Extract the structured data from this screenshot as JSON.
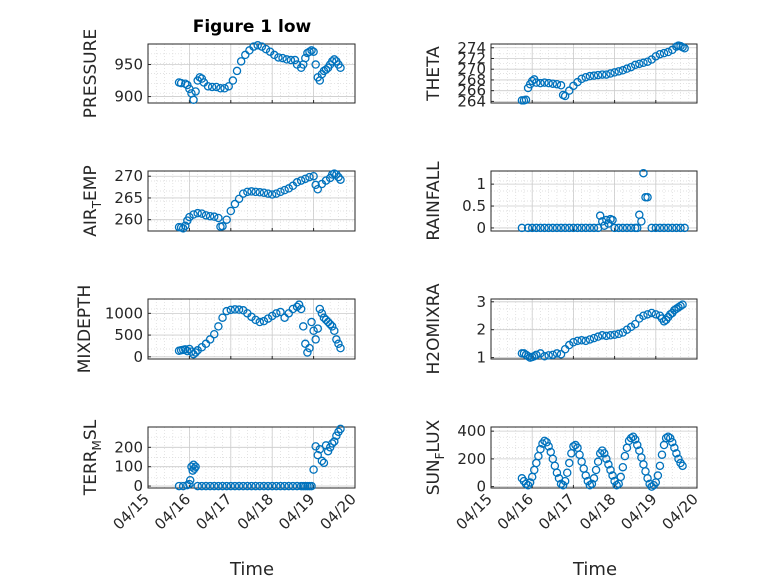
{
  "figure": {
    "title": "Figure 1 low",
    "xlabel": "Time",
    "marker_color": "#0072BD",
    "x_ticks": [
      "04/15",
      "04/16",
      "04/17",
      "04/18",
      "04/19",
      "04/20"
    ]
  },
  "chart_data": [
    {
      "type": "scatter",
      "title": "Figure 1 low",
      "ylabel": "PRESSURE",
      "ylabel_sub": "",
      "ylim": [
        890,
        982
      ],
      "yticks": [
        900,
        950
      ],
      "xlim": [
        0,
        5
      ],
      "grid": true,
      "x": [
        0.75,
        0.8,
        0.9,
        0.95,
        1.0,
        1.05,
        1.1,
        1.15,
        1.2,
        1.25,
        1.3,
        1.35,
        1.45,
        1.55,
        1.65,
        1.75,
        1.85,
        1.95,
        2.05,
        2.15,
        2.25,
        2.35,
        2.45,
        2.55,
        2.65,
        2.75,
        2.85,
        2.95,
        3.05,
        3.15,
        3.25,
        3.35,
        3.45,
        3.55,
        3.6,
        3.7,
        3.75,
        3.8,
        3.85,
        3.9,
        3.95,
        4.0,
        4.05,
        4.1,
        4.15,
        4.2,
        4.25,
        4.3,
        4.35,
        4.4,
        4.45,
        4.5,
        4.55,
        4.6,
        4.65
      ],
      "y": [
        922,
        921,
        920,
        918,
        912,
        905,
        895,
        908,
        925,
        930,
        928,
        922,
        916,
        915,
        915,
        913,
        913,
        916,
        925,
        940,
        955,
        965,
        972,
        978,
        980,
        978,
        974,
        970,
        965,
        961,
        960,
        958,
        957,
        957,
        950,
        945,
        950,
        960,
        968,
        970,
        972,
        970,
        950,
        930,
        925,
        935,
        940,
        942,
        945,
        950,
        955,
        958,
        955,
        950,
        945
      ]
    },
    {
      "type": "scatter",
      "ylabel": "THETA",
      "ylabel_sub": "",
      "ylim": [
        263.7,
        274.7
      ],
      "yticks": [
        264,
        266,
        268,
        270,
        272,
        274
      ],
      "xlim": [
        0,
        5
      ],
      "grid": true,
      "x": [
        0.75,
        0.8,
        0.85,
        0.9,
        0.95,
        1.0,
        1.05,
        1.1,
        1.2,
        1.3,
        1.4,
        1.5,
        1.6,
        1.7,
        1.75,
        1.8,
        1.9,
        2.0,
        2.1,
        2.2,
        2.3,
        2.4,
        2.5,
        2.6,
        2.7,
        2.8,
        2.9,
        3.0,
        3.1,
        3.2,
        3.3,
        3.4,
        3.5,
        3.6,
        3.7,
        3.8,
        3.9,
        4.0,
        4.1,
        4.2,
        4.3,
        4.4,
        4.5,
        4.55,
        4.6,
        4.65,
        4.7
      ],
      "y": [
        264.2,
        264.2,
        264.3,
        266.5,
        267.2,
        267.8,
        268.1,
        267.5,
        267.4,
        267.5,
        267.4,
        267.3,
        267.2,
        267.0,
        265.2,
        265.0,
        266.0,
        266.9,
        267.6,
        268.2,
        268.5,
        268.7,
        268.8,
        268.9,
        269.0,
        269.0,
        269.2,
        269.4,
        269.6,
        269.8,
        270.1,
        270.4,
        270.8,
        271.0,
        271.2,
        271.4,
        271.8,
        272.4,
        272.8,
        273.0,
        273.2,
        273.6,
        274.2,
        274.4,
        274.3,
        274.1,
        273.9
      ]
    },
    {
      "type": "scatter",
      "ylabel": "AIR",
      "ylabel_sub": "T",
      "ylabel_tail": "EMP",
      "ylim": [
        257.4,
        271.2
      ],
      "yticks": [
        260,
        265,
        270
      ],
      "xlim": [
        0,
        5
      ],
      "grid": true,
      "x": [
        0.75,
        0.8,
        0.85,
        0.9,
        0.95,
        1.0,
        1.1,
        1.2,
        1.3,
        1.4,
        1.5,
        1.6,
        1.7,
        1.75,
        1.8,
        1.9,
        2.0,
        2.1,
        2.2,
        2.3,
        2.4,
        2.5,
        2.6,
        2.7,
        2.8,
        2.9,
        3.0,
        3.1,
        3.2,
        3.3,
        3.4,
        3.5,
        3.6,
        3.7,
        3.8,
        3.9,
        4.0,
        4.05,
        4.1,
        4.2,
        4.3,
        4.4,
        4.45,
        4.5,
        4.55,
        4.6,
        4.65
      ],
      "y": [
        258.3,
        258.2,
        258.0,
        258.6,
        259.8,
        260.6,
        261.2,
        261.5,
        261.4,
        261.0,
        260.8,
        260.7,
        260.4,
        258.4,
        258.5,
        260.0,
        262.0,
        263.6,
        264.8,
        266.0,
        266.4,
        266.5,
        266.4,
        266.3,
        266.2,
        266.0,
        265.8,
        266.0,
        266.4,
        266.8,
        267.2,
        267.8,
        268.6,
        269.0,
        269.4,
        269.8,
        270.0,
        268.0,
        267.0,
        268.2,
        269.0,
        269.6,
        270.4,
        270.6,
        270.4,
        269.8,
        269.2
      ]
    },
    {
      "type": "scatter",
      "ylabel": "RAINFALL",
      "ylabel_sub": "",
      "ylim": [
        -0.07,
        1.3
      ],
      "yticks": [
        0,
        0.5,
        1
      ],
      "xlim": [
        0,
        5
      ],
      "grid": true,
      "x": [
        0.75,
        0.9,
        1.0,
        1.1,
        1.2,
        1.3,
        1.4,
        1.5,
        1.6,
        1.7,
        1.8,
        1.9,
        2.0,
        2.1,
        2.2,
        2.3,
        2.4,
        2.5,
        2.6,
        2.65,
        2.7,
        2.75,
        2.8,
        2.85,
        2.9,
        2.95,
        3.0,
        3.1,
        3.2,
        3.3,
        3.4,
        3.5,
        3.55,
        3.6,
        3.65,
        3.7,
        3.75,
        3.8,
        3.9,
        4.0,
        4.1,
        4.2,
        4.3,
        4.4,
        4.5,
        4.6,
        4.7
      ],
      "y": [
        0,
        0,
        0,
        0,
        0,
        0,
        0,
        0,
        0,
        0,
        0,
        0,
        0,
        0,
        0,
        0,
        0,
        0,
        0,
        0.28,
        0.15,
        0.05,
        0.18,
        0.1,
        0.2,
        0.18,
        0,
        0,
        0,
        0,
        0,
        0,
        0,
        0.3,
        0.15,
        1.25,
        0.7,
        0.7,
        0,
        0,
        0,
        0,
        0,
        0,
        0,
        0,
        0
      ]
    },
    {
      "type": "scatter",
      "ylabel": "MIXDEPTH",
      "ylabel_sub": "",
      "ylim": [
        -50,
        1330
      ],
      "yticks": [
        0,
        500,
        1000
      ],
      "xlim": [
        0,
        5
      ],
      "grid": true,
      "x": [
        0.75,
        0.8,
        0.85,
        0.9,
        0.95,
        1.0,
        1.05,
        1.1,
        1.15,
        1.2,
        1.3,
        1.4,
        1.5,
        1.6,
        1.7,
        1.8,
        1.9,
        2.0,
        2.1,
        2.2,
        2.3,
        2.4,
        2.5,
        2.6,
        2.7,
        2.8,
        2.9,
        3.0,
        3.1,
        3.2,
        3.3,
        3.4,
        3.5,
        3.6,
        3.65,
        3.7,
        3.75,
        3.8,
        3.85,
        3.9,
        3.95,
        4.0,
        4.05,
        4.1,
        4.15,
        4.2,
        4.25,
        4.3,
        4.35,
        4.4,
        4.45,
        4.5,
        4.55,
        4.6,
        4.65
      ],
      "y": [
        140,
        150,
        160,
        170,
        130,
        180,
        120,
        60,
        100,
        150,
        220,
        300,
        400,
        520,
        700,
        900,
        1050,
        1080,
        1090,
        1085,
        1070,
        1000,
        920,
        850,
        800,
        820,
        880,
        940,
        1000,
        1030,
        900,
        1000,
        1100,
        1150,
        1200,
        1100,
        700,
        300,
        100,
        200,
        800,
        600,
        400,
        650,
        1100,
        1000,
        900,
        850,
        800,
        750,
        700,
        600,
        400,
        300,
        200
      ]
    },
    {
      "type": "scatter",
      "ylabel": "H2OMIXRA",
      "ylabel_sub": "",
      "ylim": [
        0.95,
        3.1
      ],
      "yticks": [
        1,
        2,
        3
      ],
      "xlim": [
        0,
        5
      ],
      "grid": true,
      "x": [
        0.75,
        0.8,
        0.85,
        0.9,
        0.95,
        1.0,
        1.05,
        1.1,
        1.2,
        1.3,
        1.4,
        1.5,
        1.6,
        1.7,
        1.8,
        1.9,
        2.0,
        2.1,
        2.2,
        2.3,
        2.4,
        2.5,
        2.6,
        2.7,
        2.8,
        2.9,
        3.0,
        3.1,
        3.2,
        3.3,
        3.4,
        3.5,
        3.6,
        3.7,
        3.8,
        3.9,
        4.0,
        4.1,
        4.15,
        4.2,
        4.25,
        4.3,
        4.35,
        4.4,
        4.45,
        4.5,
        4.55,
        4.6,
        4.65
      ],
      "y": [
        1.15,
        1.15,
        1.1,
        1.05,
        1.0,
        1.02,
        1.05,
        1.1,
        1.15,
        1.05,
        1.08,
        1.1,
        1.15,
        1.12,
        1.3,
        1.45,
        1.55,
        1.6,
        1.62,
        1.6,
        1.65,
        1.7,
        1.75,
        1.8,
        1.78,
        1.8,
        1.82,
        1.85,
        1.9,
        2.0,
        2.1,
        2.2,
        2.4,
        2.5,
        2.55,
        2.6,
        2.55,
        2.5,
        2.4,
        2.3,
        2.35,
        2.45,
        2.55,
        2.6,
        2.7,
        2.75,
        2.8,
        2.85,
        2.9
      ]
    },
    {
      "type": "scatter",
      "ylabel": "TERR",
      "ylabel_sub": "M",
      "ylabel_tail": "SL",
      "ylim": [
        -10,
        305
      ],
      "yticks": [
        0,
        100,
        200
      ],
      "xlim": [
        0,
        5
      ],
      "grid": true,
      "x": [
        0.75,
        0.85,
        0.95,
        1.0,
        1.02,
        1.05,
        1.08,
        1.1,
        1.12,
        1.15,
        1.2,
        1.3,
        1.4,
        1.5,
        1.6,
        1.7,
        1.8,
        1.9,
        2.0,
        2.1,
        2.2,
        2.3,
        2.4,
        2.5,
        2.6,
        2.7,
        2.8,
        2.9,
        3.0,
        3.1,
        3.2,
        3.3,
        3.4,
        3.5,
        3.6,
        3.7,
        3.75,
        3.8,
        3.85,
        3.9,
        3.95,
        4.0,
        4.05,
        4.1,
        4.15,
        4.2,
        4.25,
        4.3,
        4.35,
        4.4,
        4.45,
        4.5,
        4.55,
        4.6,
        4.65
      ],
      "y": [
        0,
        0,
        5,
        10,
        30,
        100,
        80,
        110,
        90,
        100,
        0,
        0,
        0,
        0,
        0,
        0,
        0,
        0,
        0,
        0,
        0,
        0,
        0,
        0,
        0,
        0,
        0,
        0,
        0,
        0,
        0,
        0,
        0,
        0,
        0,
        0,
        0,
        0,
        0,
        0,
        0,
        85,
        205,
        160,
        190,
        130,
        120,
        210,
        180,
        200,
        220,
        230,
        260,
        280,
        295
      ]
    },
    {
      "type": "scatter",
      "ylabel": "SUN",
      "ylabel_sub": "F",
      "ylabel_tail": "LUX",
      "ylim": [
        -10,
        430
      ],
      "yticks": [
        0,
        200,
        400
      ],
      "xlim": [
        0,
        5
      ],
      "grid": true,
      "x": [
        0.75,
        0.8,
        0.85,
        0.9,
        0.95,
        1.0,
        1.05,
        1.1,
        1.15,
        1.2,
        1.25,
        1.3,
        1.35,
        1.4,
        1.45,
        1.5,
        1.55,
        1.6,
        1.65,
        1.7,
        1.75,
        1.8,
        1.85,
        1.9,
        1.95,
        2.0,
        2.05,
        2.1,
        2.15,
        2.2,
        2.25,
        2.3,
        2.35,
        2.4,
        2.45,
        2.5,
        2.55,
        2.6,
        2.65,
        2.7,
        2.75,
        2.8,
        2.85,
        2.9,
        2.95,
        3.0,
        3.05,
        3.1,
        3.15,
        3.2,
        3.25,
        3.3,
        3.35,
        3.4,
        3.45,
        3.5,
        3.55,
        3.6,
        3.65,
        3.7,
        3.75,
        3.8,
        3.85,
        3.9,
        3.95,
        4.0,
        4.05,
        4.1,
        4.15,
        4.2,
        4.25,
        4.3,
        4.35,
        4.4,
        4.45,
        4.5,
        4.55,
        4.6,
        4.65
      ],
      "y": [
        60,
        40,
        20,
        10,
        30,
        70,
        120,
        170,
        220,
        270,
        310,
        330,
        320,
        290,
        250,
        200,
        150,
        100,
        60,
        20,
        10,
        40,
        100,
        170,
        240,
        290,
        300,
        280,
        230,
        180,
        130,
        80,
        40,
        10,
        20,
        60,
        120,
        180,
        240,
        260,
        240,
        200,
        160,
        120,
        80,
        40,
        10,
        20,
        70,
        140,
        220,
        280,
        330,
        350,
        360,
        340,
        300,
        260,
        210,
        160,
        110,
        60,
        20,
        0,
        10,
        30,
        80,
        150,
        230,
        300,
        350,
        360,
        350,
        320,
        280,
        240,
        200,
        170,
        150
      ]
    }
  ]
}
